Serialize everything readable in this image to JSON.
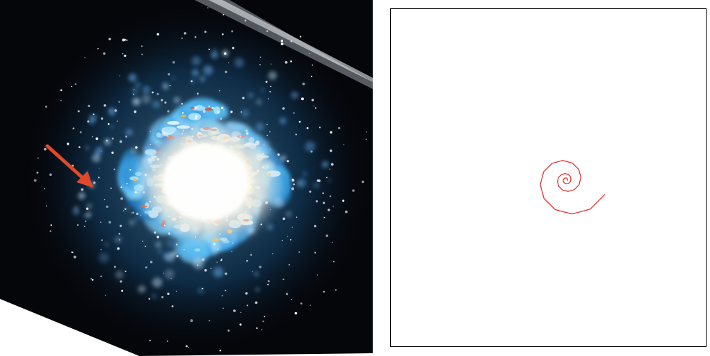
{
  "colors": {
    "background": "#ffffff",
    "space": "#05060a",
    "arm_blue": "#2f9ee0",
    "arm_light": "#9fdcff",
    "core": "#fffdf4",
    "nebula": "#d9572e",
    "arrow": "#e04a2a",
    "spiral_line": "#e83030",
    "frame": "#000000"
  },
  "panels": {
    "left": {
      "name": "galaxy-illustration",
      "icon": "spiral-galaxy"
    },
    "right": {
      "name": "spiral-curve-plot",
      "icon": "logarithmic-spiral"
    }
  },
  "pointer": {
    "icon": "arrow-icon"
  }
}
